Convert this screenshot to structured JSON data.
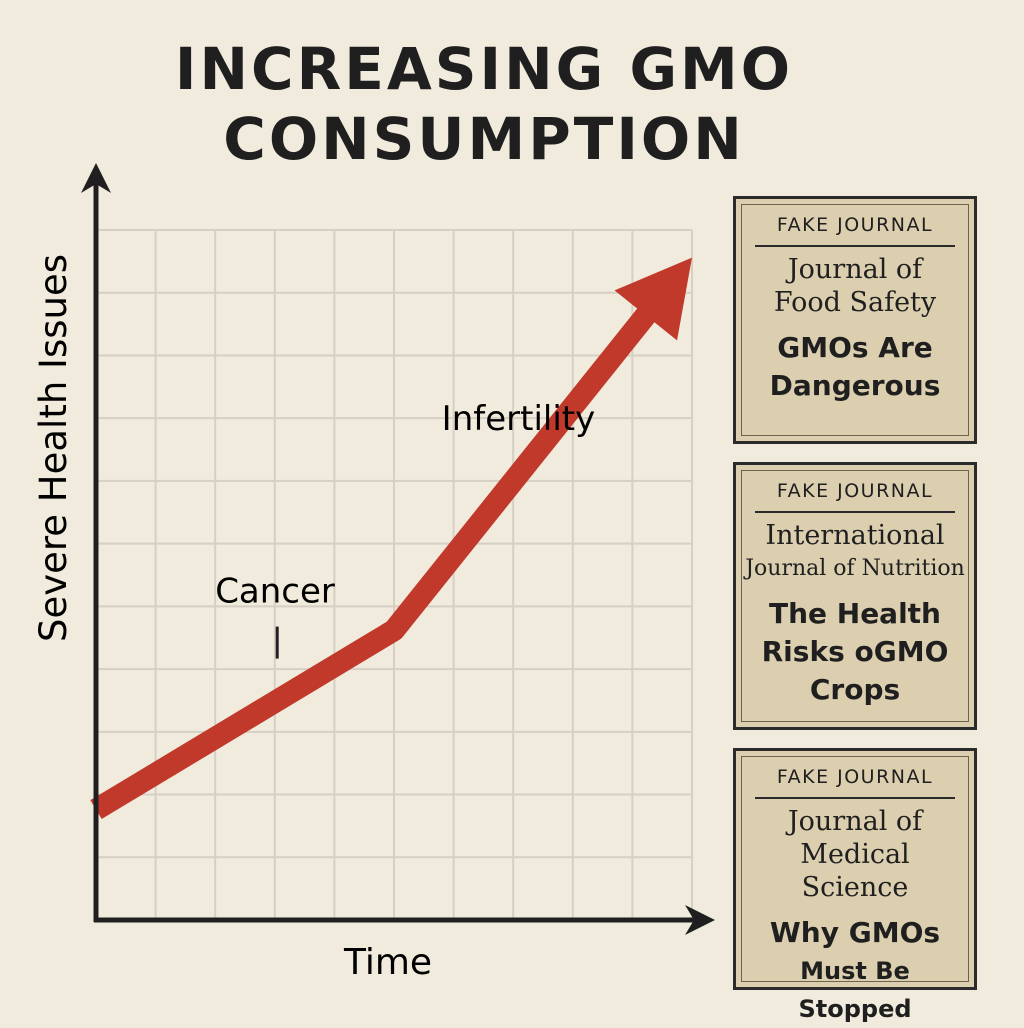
{
  "title_line1": "INCREASING GMO",
  "title_line2": "CONSUMPTION",
  "chart_data": {
    "type": "line",
    "title": "INCREASING GMO CONSUMPTION",
    "xlabel": "Time",
    "ylabel": "Severe Health Issues",
    "grid": true,
    "x": [
      0,
      5,
      10
    ],
    "series": [
      {
        "values": [
          1.6,
          4.2,
          9.6
        ],
        "color": "#c0392b",
        "arrow": true
      }
    ],
    "annotations": [
      {
        "text": "Cancer",
        "x": 2,
        "y": 4.6
      },
      {
        "text": "Infertility",
        "x": 5.8,
        "y": 7.1
      }
    ],
    "xlim": [
      0,
      10
    ],
    "ylim": [
      0,
      10
    ]
  },
  "journals": [
    {
      "tag": "FAKE JOURNAL",
      "journal_line1": "Journal of",
      "journal_line2": "Food Safety",
      "headline_line1": "GMOs Are",
      "headline_line2": "Dangerous"
    },
    {
      "tag": "FAKE JOURNAL",
      "journal_line1": "International",
      "journal_line2": "Journal of Nutrition",
      "headline_line1": "The Health",
      "headline_line2": "Risks oGMO",
      "headline_line3": "Crops"
    },
    {
      "tag": "FAKE JOURNAL",
      "journal_line1": "Journal of",
      "journal_line2": "Medical Science",
      "headline_line1": "Why GMOs",
      "headline_line2": "Must Be Stopped"
    }
  ]
}
